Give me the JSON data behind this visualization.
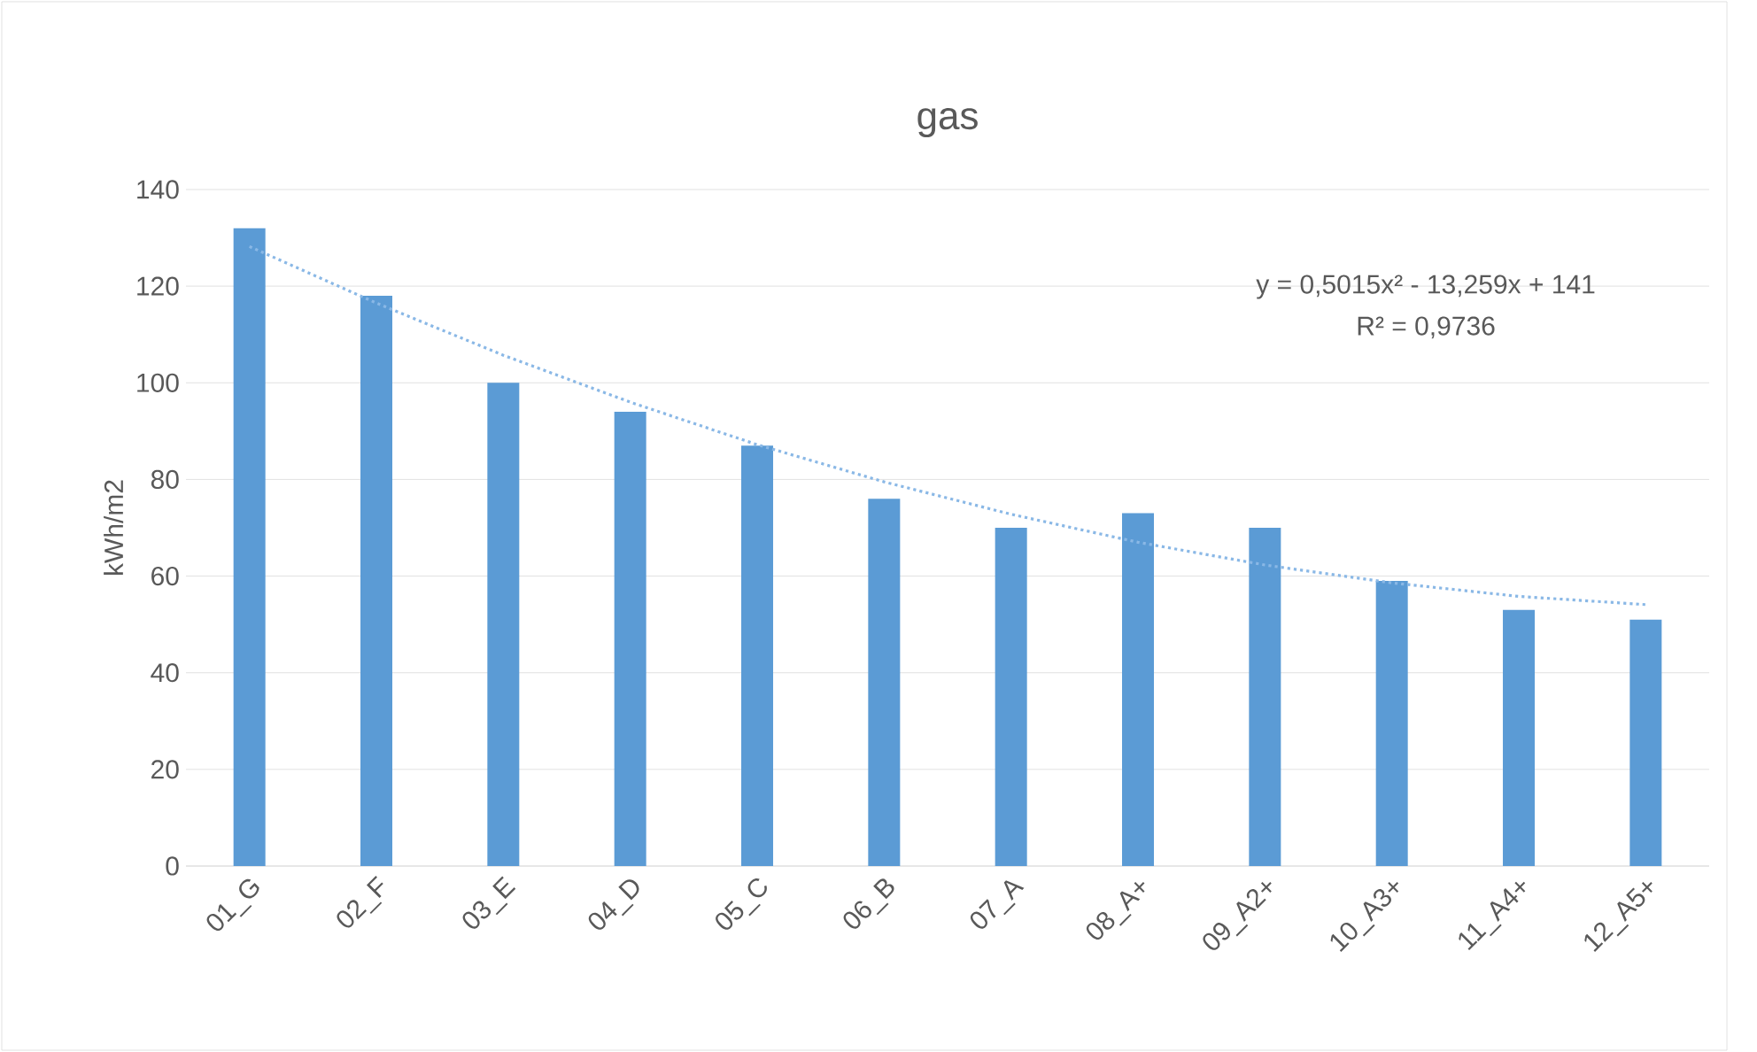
{
  "chart_data": {
    "type": "bar",
    "title": "gas",
    "ylabel": "kWh/m2",
    "categories": [
      "01_G",
      "02_F",
      "03_E",
      "04_D",
      "05_C",
      "06_B",
      "07_A",
      "08_A+",
      "09_A2+",
      "10_A3+",
      "11_A4+",
      "12_A5+"
    ],
    "series": [
      {
        "color": "#5b9bd5",
        "values": [
          132,
          118,
          100,
          94,
          87,
          76,
          70,
          73,
          70,
          59,
          53,
          51
        ]
      },
      {
        "type": "line",
        "color": "#8ab8e6",
        "line_style": "dotted",
        "values": [
          128.2,
          116.5,
          105.7,
          96.0,
          87.2,
          79.5,
          72.8,
          67.0,
          62.3,
          58.6,
          55.8,
          54.1
        ]
      }
    ],
    "ylim": [
      0,
      140
    ],
    "yticks": [
      0,
      20,
      40,
      60,
      80,
      100,
      120,
      140
    ],
    "grid": "y",
    "annotations": [
      "y = 0,5015x² - 13,259x + 141",
      "R² = 0,9736"
    ]
  }
}
